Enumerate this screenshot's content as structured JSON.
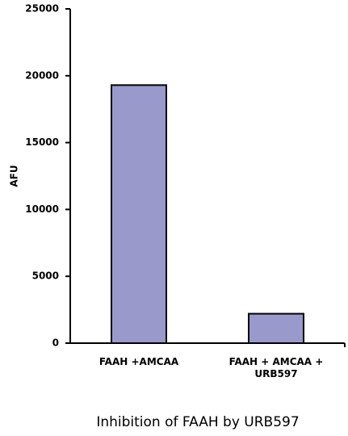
{
  "chart_data": {
    "type": "bar",
    "title": "Inhibition of FAAH by URB597",
    "y_label": "AFU",
    "categories": [
      "FAAH +AMCAA",
      "FAAH + AMCAA + URB597"
    ],
    "values": [
      19300,
      2200
    ],
    "color": "#9999cc",
    "ylim": [
      0,
      25000
    ],
    "yticks": [
      0,
      5000,
      10000,
      15000,
      20000,
      25000
    ]
  }
}
